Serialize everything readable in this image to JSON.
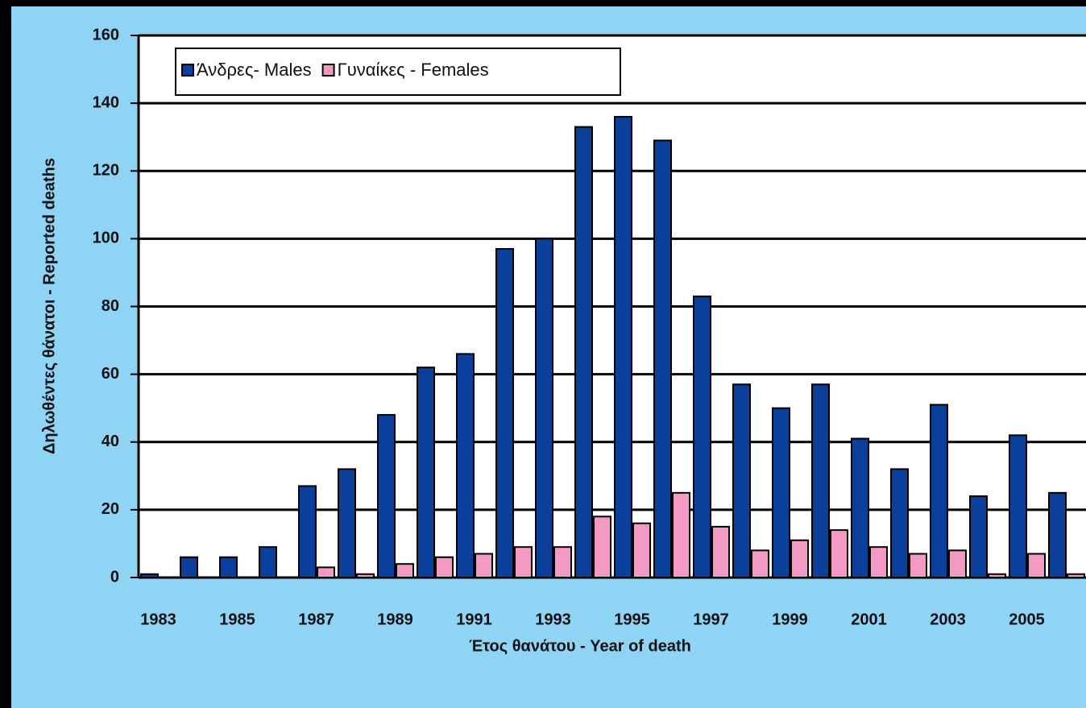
{
  "chart_data": {
    "type": "bar",
    "ylabel": "Δηλωθέντες θάνατοι - Reported deaths",
    "xlabel": "Έτος θανάτου - Year of death",
    "categories": [
      "1983",
      null,
      "1985",
      null,
      "1987",
      null,
      "1989",
      null,
      "1991",
      null,
      "1993",
      null,
      "1995",
      null,
      "1997",
      null,
      "1999",
      null,
      "2001",
      null,
      "2003",
      null,
      "2005",
      null
    ],
    "series": [
      {
        "name": "Άνδρες- Males",
        "color": "#0b3f9c",
        "values": [
          1,
          6,
          6,
          9,
          27,
          32,
          48,
          62,
          66,
          97,
          100,
          133,
          136,
          129,
          83,
          57,
          50,
          57,
          41,
          32,
          51,
          24,
          42,
          25
        ]
      },
      {
        "name": "Γυναίκες - Females",
        "color": "#f39ac4",
        "values": [
          0,
          0,
          0,
          0,
          3,
          1,
          4,
          6,
          7,
          9,
          9,
          18,
          16,
          25,
          15,
          8,
          11,
          14,
          9,
          7,
          8,
          1,
          7,
          1
        ]
      }
    ],
    "ylim": [
      0,
      160
    ],
    "yticks": [
      0,
      20,
      40,
      60,
      80,
      100,
      120,
      140,
      160
    ],
    "grid": true,
    "legend": "top-left"
  }
}
